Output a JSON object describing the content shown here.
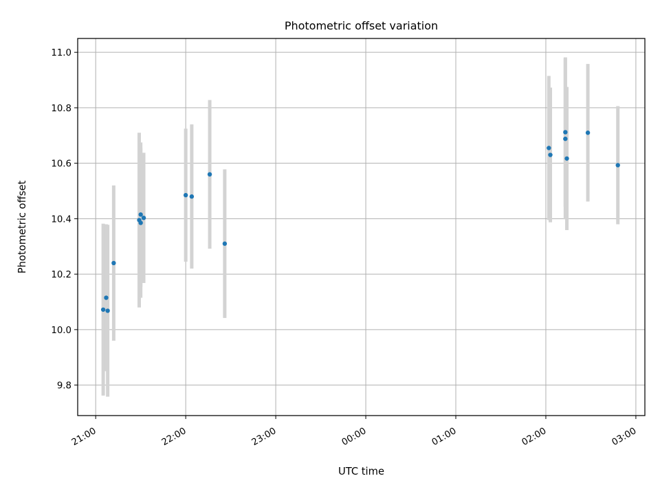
{
  "chart_data": {
    "type": "scatter",
    "title": "Photometric offset variation",
    "xlabel": "UTC time",
    "ylabel": "Photometric offset",
    "grid": true,
    "x_is_time": true,
    "xlim": [
      "20:48",
      "27:06"
    ],
    "ylim": [
      9.69,
      11.05
    ],
    "xticks": [
      {
        "t": "21:00",
        "label": "21:00"
      },
      {
        "t": "22:00",
        "label": "22:00"
      },
      {
        "t": "23:00",
        "label": "23:00"
      },
      {
        "t": "24:00",
        "label": "00:00"
      },
      {
        "t": "25:00",
        "label": "01:00"
      },
      {
        "t": "26:00",
        "label": "02:00"
      },
      {
        "t": "27:00",
        "label": "03:00"
      }
    ],
    "yticks": [
      {
        "v": 9.8,
        "label": "9.8"
      },
      {
        "v": 10.0,
        "label": "10.0"
      },
      {
        "v": 10.2,
        "label": "10.2"
      },
      {
        "v": 10.4,
        "label": "10.4"
      },
      {
        "v": 10.6,
        "label": "10.6"
      },
      {
        "v": 10.8,
        "label": "10.8"
      },
      {
        "v": 11.0,
        "label": "11.0"
      }
    ],
    "marker_color": "#1f77b4",
    "errorbar_color": "#d3d3d3",
    "points": [
      {
        "t": "21:05",
        "y": 10.072,
        "err": 0.31
      },
      {
        "t": "21:07",
        "y": 10.115,
        "err": 0.265
      },
      {
        "t": "21:08",
        "y": 10.068,
        "err": 0.31
      },
      {
        "t": "21:12",
        "y": 10.24,
        "err": 0.28
      },
      {
        "t": "21:29",
        "y": 10.395,
        "err": 0.315
      },
      {
        "t": "21:30",
        "y": 10.385,
        "err": 0.27
      },
      {
        "t": "21:30",
        "y": 10.415,
        "err": 0.26
      },
      {
        "t": "21:32",
        "y": 10.403,
        "err": 0.235
      },
      {
        "t": "22:00",
        "y": 10.485,
        "err": 0.24
      },
      {
        "t": "22:04",
        "y": 10.48,
        "err": 0.26
      },
      {
        "t": "22:16",
        "y": 10.56,
        "err": 0.268
      },
      {
        "t": "22:26",
        "y": 10.31,
        "err": 0.268
      },
      {
        "t": "26:02",
        "y": 10.655,
        "err": 0.26
      },
      {
        "t": "26:03",
        "y": 10.63,
        "err": 0.243
      },
      {
        "t": "26:13",
        "y": 10.712,
        "err": 0.27
      },
      {
        "t": "26:13",
        "y": 10.688,
        "err": 0.29
      },
      {
        "t": "26:14",
        "y": 10.617,
        "err": 0.258
      },
      {
        "t": "26:28",
        "y": 10.71,
        "err": 0.248
      },
      {
        "t": "26:48",
        "y": 10.593,
        "err": 0.213
      }
    ]
  }
}
